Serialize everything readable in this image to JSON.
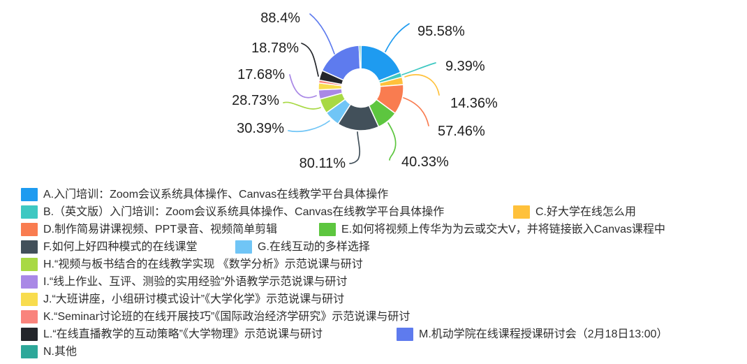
{
  "chart_data": {
    "type": "pie",
    "subtype": "donut",
    "title": "",
    "legend_position": "bottom-left",
    "label_unit": "%",
    "note": "multi-select survey percentages; slice angles proportional to value/sum",
    "series": [
      {
        "key": "A",
        "value": 95.58,
        "label": "95.58%",
        "color": "#1E9BF0",
        "legend": "A.入门培训：Zoom会议系统具体操作、Canvas在线教学平台具体操作"
      },
      {
        "key": "B",
        "value": 9.39,
        "label": "9.39%",
        "color": "#3EC8C2",
        "legend": "B.（英文版）入门培训：Zoom会议系统具体操作、Canvas在线教学平台具体操作"
      },
      {
        "key": "C",
        "value": 14.36,
        "label": "14.36%",
        "color": "#FFC13B",
        "legend": "C.好大学在线怎么用"
      },
      {
        "key": "D",
        "value": 57.46,
        "label": "57.46%",
        "color": "#F97C50",
        "legend": "D.制作简易讲课视频、PPT录音、视频简单剪辑"
      },
      {
        "key": "E",
        "value": 40.33,
        "label": "40.33%",
        "color": "#5DC63F",
        "legend": "E.如何将视频上传华为为云或交大V，并将链接嵌入Canvas课程中"
      },
      {
        "key": "F",
        "value": 80.11,
        "label": "80.11%",
        "color": "#42505A",
        "legend": "F.如何上好四种模式的在线课堂"
      },
      {
        "key": "G",
        "value": 30.39,
        "label": "30.39%",
        "color": "#70C5F6",
        "legend": "G.在线互动的多样选择"
      },
      {
        "key": "H",
        "value": 28.73,
        "label": "28.73%",
        "color": "#A8D944",
        "legend": "H.“视频与板书结合的在线教学实现 《数学分析》示范说课与研讨"
      },
      {
        "key": "I",
        "value": 17.68,
        "label": "17.68%",
        "color": "#A988E6",
        "legend": "I.“线上作业、互评、测验的实用经验”外语教学示范说课与研讨"
      },
      {
        "key": "J",
        "value": 13.0,
        "value_estimated": true,
        "label": null,
        "color": "#F8DC4E",
        "legend": "J.“大班讲座，小组研讨模式设计”《大学化学》示范说课与研讨"
      },
      {
        "key": "K",
        "value": 5.5,
        "value_estimated": true,
        "label": null,
        "color": "#F9837C",
        "legend": "K.“Seminar讨论班的在线开展技巧”《国际政治经济学研究》示范说课与研讨"
      },
      {
        "key": "L",
        "value": 18.78,
        "label": "18.78%",
        "color": "#24262B",
        "legend": "L.“在线直播教学的互动策略”《大学物理》示范说课与研讨"
      },
      {
        "key": "M",
        "value": 88.4,
        "label": "88.4%",
        "color": "#5E7BEE",
        "legend": "M.机动学院在线课程授课研讨会（2月18日13:00）"
      },
      {
        "key": "N",
        "value": 3.5,
        "value_estimated": true,
        "label": null,
        "color": "#2EA89A",
        "legend": "N.其他"
      }
    ]
  }
}
